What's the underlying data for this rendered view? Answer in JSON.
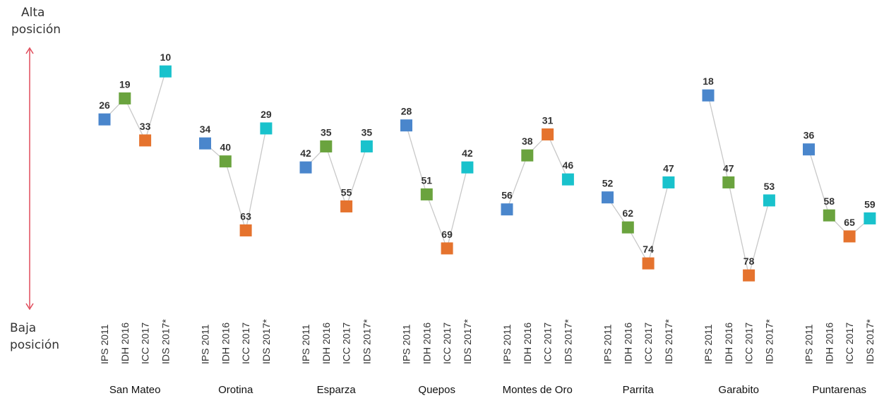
{
  "axis_labels": {
    "top_line1": "Alta",
    "top_line2": "posición",
    "bottom_line1": "Baja",
    "bottom_line2": "posición"
  },
  "colors": {
    "IPS 2011": "#4a86cc",
    "IDH 2016": "#6aa33e",
    "ICC 2017": "#e5732e",
    "IDS 2017*": "#19c2cc",
    "connector": "#c8c8c8",
    "arrow": "#e04b5a"
  },
  "chart_data": {
    "type": "line",
    "y_scale_note": "rank position; lower rank number is higher position",
    "categories": [
      "IPS 2011",
      "IDH 2016",
      "ICC 2017",
      "IDS 2017*"
    ],
    "groups": [
      {
        "name": "San Mateo",
        "values": [
          26,
          19,
          33,
          10
        ]
      },
      {
        "name": "Orotina",
        "values": [
          34,
          40,
          63,
          29
        ]
      },
      {
        "name": "Esparza",
        "values": [
          42,
          35,
          55,
          35
        ]
      },
      {
        "name": "Quepos",
        "values": [
          28,
          51,
          69,
          42
        ]
      },
      {
        "name": "Montes de Oro",
        "values": [
          56,
          38,
          31,
          46
        ]
      },
      {
        "name": "Parrita",
        "values": [
          52,
          62,
          74,
          47
        ]
      },
      {
        "name": "Garabito",
        "values": [
          18,
          47,
          78,
          53
        ]
      },
      {
        "name": "Puntarenas",
        "values": [
          36,
          58,
          65,
          59
        ]
      }
    ]
  }
}
